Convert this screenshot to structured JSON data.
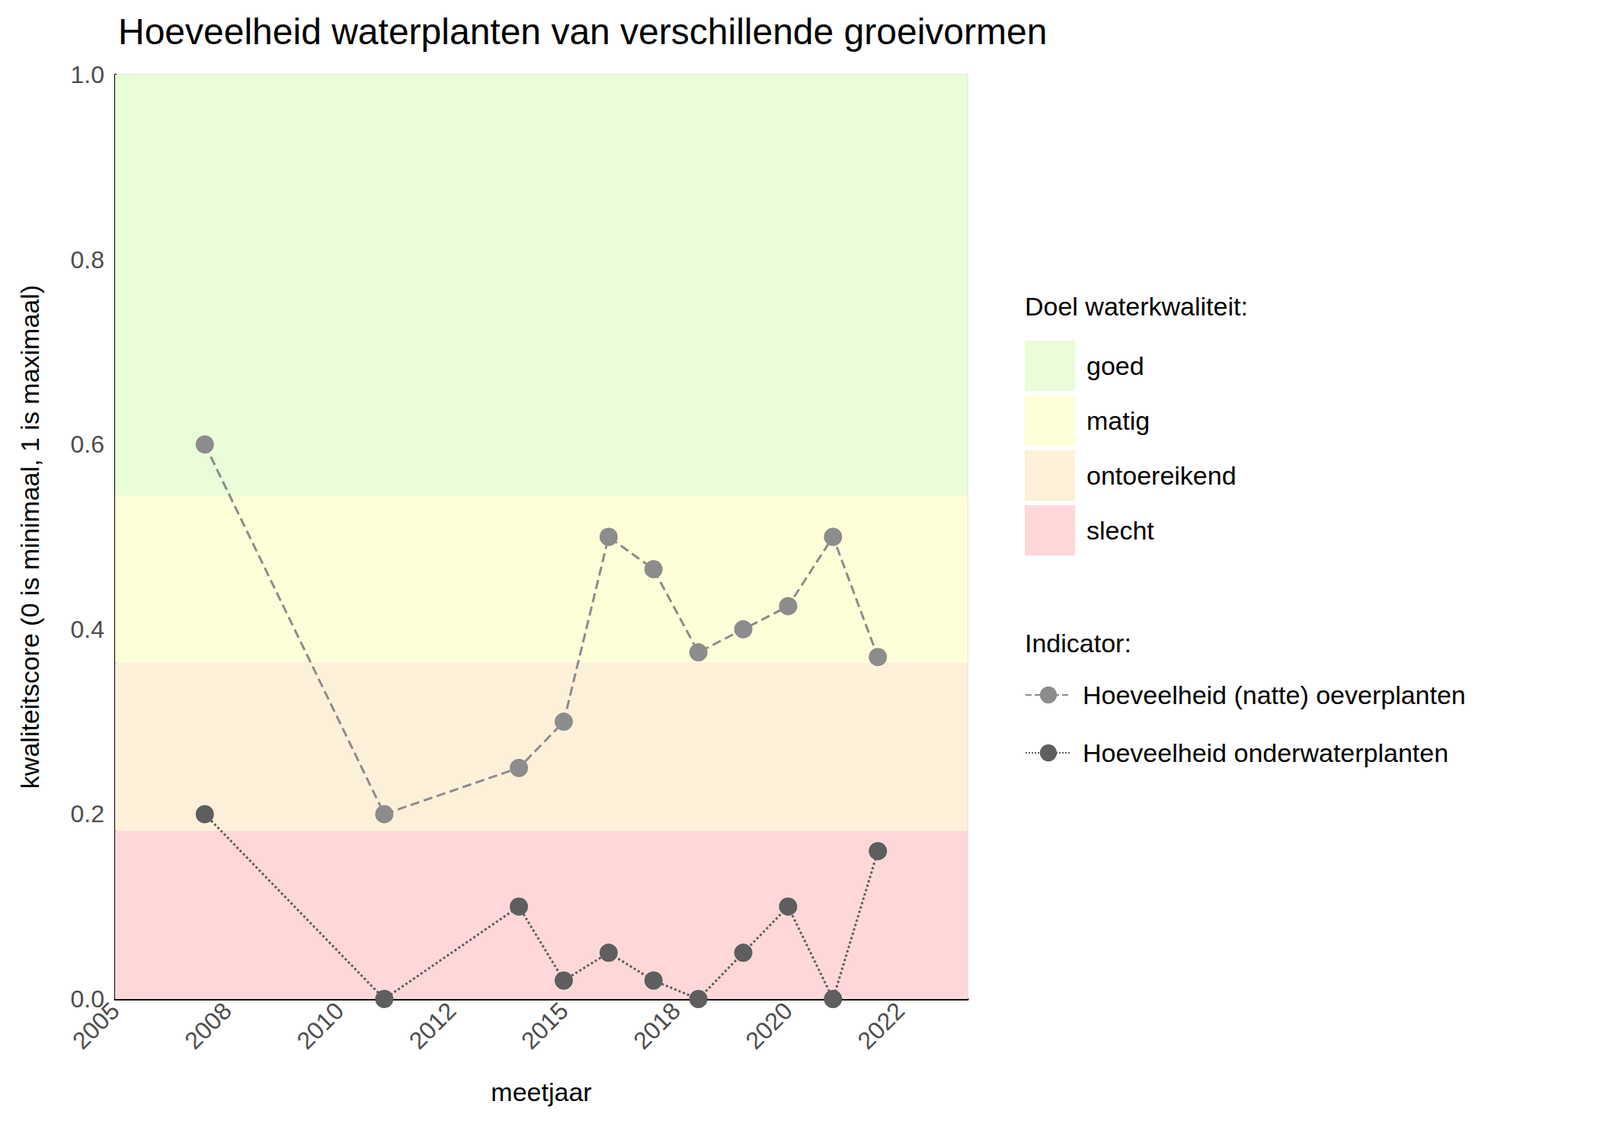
{
  "chart_data": {
    "type": "line",
    "title": "Hoeveelheid waterplanten van verschillende groeivormen",
    "x_label": "meetjaar",
    "y_label": "kwaliteitscore (0 is minimaal, 1 is maximaal)",
    "x": [
      2007,
      2011,
      2014,
      2015,
      2016,
      2017,
      2018,
      2019,
      2020,
      2021,
      2022
    ],
    "series": [
      {
        "name": "Hoeveelheid (natte) oeverplanten",
        "color": "#8c8c8c",
        "marker": "circle",
        "line_style": "dashed",
        "values": [
          0.6,
          0.2,
          0.25,
          0.3,
          0.5,
          0.465,
          0.375,
          0.4,
          0.425,
          0.5,
          0.37
        ]
      },
      {
        "name": "Hoeveelheid onderwaterplanten",
        "color": "#5e5e5e",
        "marker": "circle",
        "line_style": "dotted",
        "values": [
          0.2,
          0.0,
          0.1,
          0.02,
          0.05,
          0.02,
          0.0,
          0.05,
          0.1,
          0.0,
          0.16
        ]
      }
    ],
    "series_title": "Indicator:",
    "bands_title": "Doel waterkwaliteit:",
    "bands": [
      {
        "name": "goed",
        "color": "#e8fdd8",
        "from": 0.545,
        "to": 1.0
      },
      {
        "name": "matig",
        "color": "#fefed8",
        "from": 0.364,
        "to": 0.545
      },
      {
        "name": "ontoereikend",
        "color": "#fdf0d8",
        "from": 0.182,
        "to": 0.364
      },
      {
        "name": "slecht",
        "color": "#fed8d8",
        "from": 0.0,
        "to": 0.182
      }
    ],
    "xlim": [
      2005,
      2024
    ],
    "xticks": [
      {
        "value": 2005,
        "label": "2005"
      },
      {
        "value": 2007.5,
        "label": "2008"
      },
      {
        "value": 2010,
        "label": "2010"
      },
      {
        "value": 2012.5,
        "label": "2012"
      },
      {
        "value": 2015,
        "label": "2015"
      },
      {
        "value": 2017.5,
        "label": "2018"
      },
      {
        "value": 2020,
        "label": "2020"
      },
      {
        "value": 2022.5,
        "label": "2022"
      }
    ],
    "ylim": [
      0,
      1
    ],
    "yticks": [
      {
        "value": 0,
        "label": "0.0"
      },
      0.2,
      0.4,
      0.6,
      0.8,
      {
        "value": 1,
        "label": "1.0"
      }
    ],
    "grid": true
  }
}
